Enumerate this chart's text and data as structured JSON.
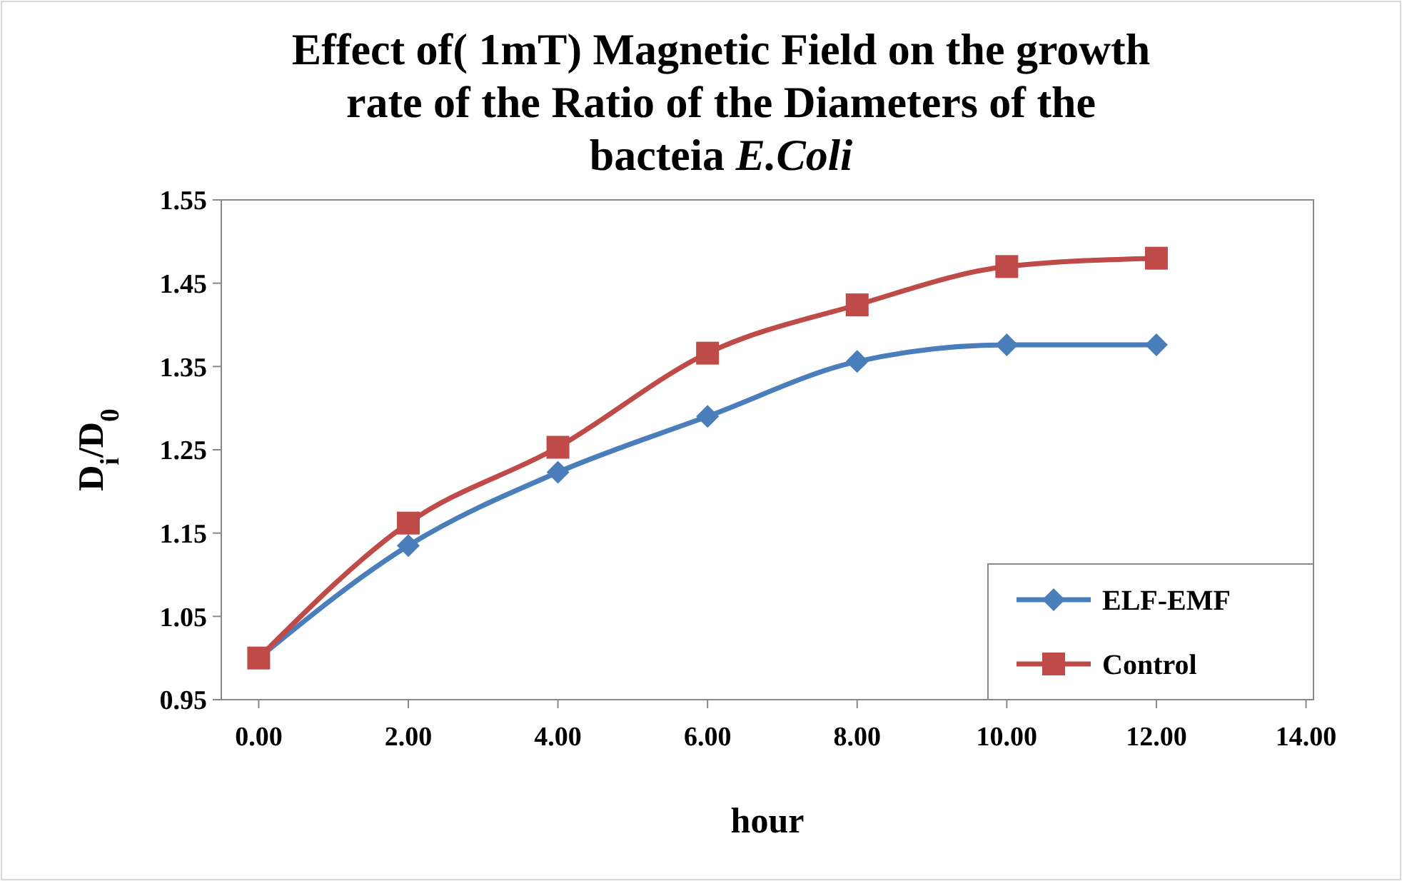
{
  "chart_data": {
    "type": "line",
    "title": "Effect of( 1mT) Magnetic Field on the growth rate of the Ratio of the Diameters of the bacteia E.Coli",
    "xlabel": "hour",
    "ylabel": "D$_{i}$/D$_{0}$",
    "x": [
      0,
      2,
      4,
      6,
      8,
      10,
      12
    ],
    "xlim": [
      -0.5,
      14.1
    ],
    "xticks": [
      {
        "value": 0,
        "label": "0.00"
      },
      {
        "value": 2,
        "label": "2.00"
      },
      {
        "value": 4,
        "label": "4.00"
      },
      {
        "value": 6,
        "label": "6.00"
      },
      {
        "value": 8,
        "label": "8.00"
      },
      {
        "value": 10,
        "label": "10.00"
      },
      {
        "value": 12,
        "label": "12.00"
      },
      {
        "value": 14,
        "label": "14.00"
      }
    ],
    "ylim": [
      0.95,
      1.55
    ],
    "yticks": [
      0.95,
      1.05,
      1.15,
      1.25,
      1.35,
      1.45,
      1.55
    ],
    "series": [
      {
        "name": "ELF-EMF",
        "color": "#4a7ebb",
        "marker": "diamond",
        "values": [
          1.0,
          1.135,
          1.223,
          1.29,
          1.356,
          1.376,
          1.376
        ]
      },
      {
        "name": "Control",
        "color": "#be4b48",
        "marker": "square",
        "values": [
          1.0,
          1.162,
          1.253,
          1.366,
          1.424,
          1.47,
          1.48
        ]
      }
    ],
    "grid": false,
    "legend": "bottom right",
    "line_style": "solid"
  }
}
